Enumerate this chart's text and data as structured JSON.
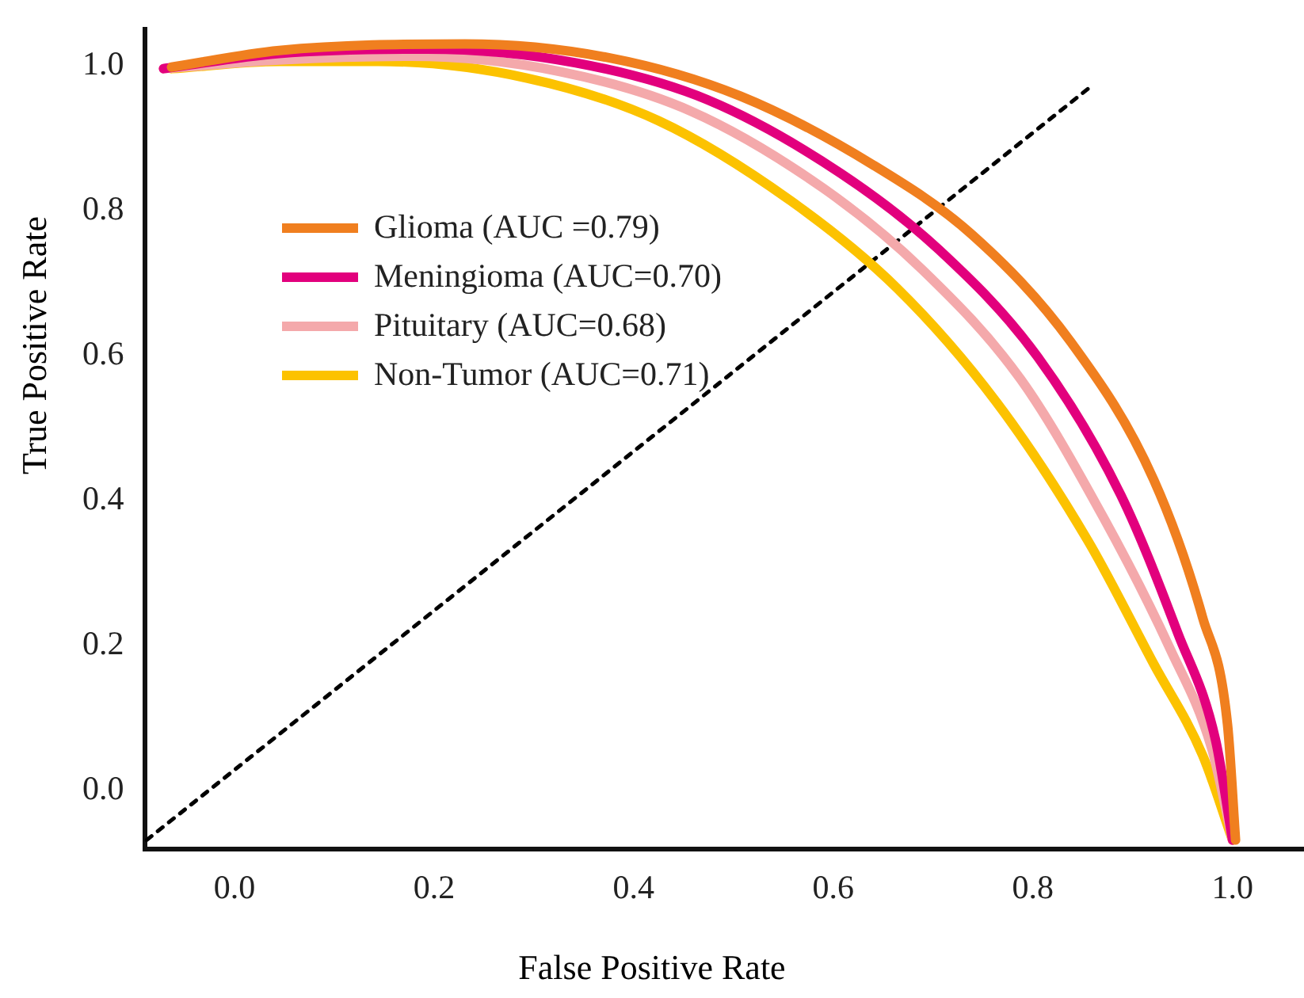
{
  "chart_data": {
    "type": "line",
    "xlabel": "False Positive Rate",
    "ylabel": "True Positive Rate",
    "xlim": [
      -0.09,
      1.07
    ],
    "ylim": [
      -0.08,
      1.05
    ],
    "xticks": [
      {
        "value": 0,
        "label": "0.0"
      },
      0.2,
      0.4,
      0.6,
      0.8,
      {
        "value": 1,
        "label": "1.0"
      }
    ],
    "yticks": [
      {
        "value": 0,
        "label": "0.0"
      },
      0.2,
      0.4,
      0.6,
      0.8,
      {
        "value": 1,
        "label": "1.0"
      }
    ],
    "legend": "left",
    "marker": "none",
    "series": [
      {
        "name": "Glioma (AUC =0.79)",
        "color": "#f07f1f",
        "x": [
          -0.063,
          0.045,
          0.231,
          0.375,
          0.507,
          0.64,
          0.739,
          0.838,
          0.921,
          0.97,
          0.995,
          1.003
        ],
        "values": [
          0.998,
          1.021,
          1.03,
          1.011,
          0.958,
          0.863,
          0.767,
          0.619,
          0.429,
          0.239,
          0.091,
          -0.068
        ]
      },
      {
        "name": "Meningioma (AUC=0.70)",
        "color": "#e2007d",
        "x": [
          -0.071,
          0.045,
          0.193,
          0.342,
          0.474,
          0.607,
          0.706,
          0.805,
          0.888,
          0.945,
          0.983,
          1.0
        ],
        "values": [
          0.996,
          1.017,
          1.023,
          1.004,
          0.953,
          0.852,
          0.746,
          0.598,
          0.408,
          0.218,
          0.07,
          -0.068
        ]
      },
      {
        "name": "Pituitary (AUC=0.68)",
        "color": "#f4a9ab",
        "x": [
          -0.071,
          0.045,
          0.177,
          0.326,
          0.458,
          0.59,
          0.689,
          0.788,
          0.871,
          0.937,
          0.979,
          1.0
        ],
        "values": [
          0.996,
          1.008,
          1.013,
          0.992,
          0.937,
          0.831,
          0.719,
          0.567,
          0.376,
          0.197,
          0.059,
          -0.068
        ]
      },
      {
        "name": "Non-Tumor (AUC=0.71)",
        "color": "#fcc200",
        "x": [
          -0.063,
          0.045,
          0.144,
          0.293,
          0.425,
          0.557,
          0.664,
          0.764,
          0.855,
          0.921,
          0.97,
          1.0
        ],
        "values": [
          0.996,
          1.006,
          1.006,
          0.983,
          0.924,
          0.814,
          0.693,
          0.535,
          0.345,
          0.175,
          0.049,
          -0.068
        ]
      },
      {
        "color": "#000000",
        "line_style": "dotted",
        "x": [
          -0.088,
          0.855
        ],
        "values": [
          -0.068,
          0.968
        ]
      }
    ]
  }
}
